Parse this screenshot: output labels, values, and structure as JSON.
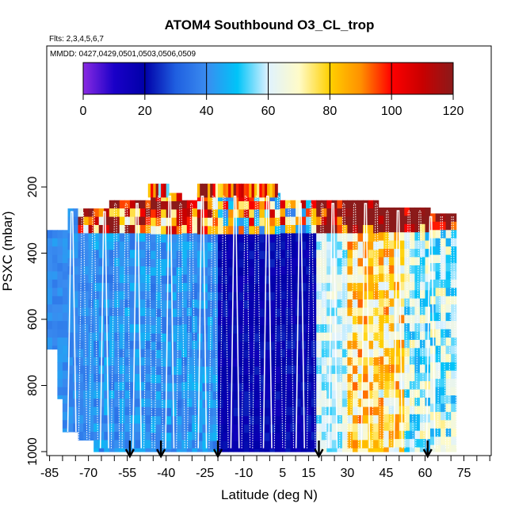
{
  "chart_data": {
    "type": "heatmap",
    "title": "ATOM4 Southbound O3_CL_trop",
    "flights_note": "Flts: 2,3,4,5,6,7",
    "dates_note": "MMDD: 0427,0429,0501,0503,0506,0509",
    "xlabel": "Latitude (deg N)",
    "ylabel": "PSXC (mbar)",
    "xlim": [
      -88,
      90
    ],
    "ylim": [
      1010,
      0
    ],
    "x_ticks": [
      -85,
      -70,
      -55,
      -40,
      -25,
      -10,
      5,
      15,
      30,
      45,
      60,
      75
    ],
    "x_tick_labels": [
      "-85",
      "-70",
      "-55",
      "-40",
      "-25",
      "-10",
      "5",
      "15",
      "30",
      "45",
      "60",
      "75"
    ],
    "x_minor_step": 5,
    "y_ticks": [
      200,
      400,
      600,
      800,
      1000
    ],
    "y_tick_labels": [
      "200",
      "400",
      "600",
      "800",
      "1000"
    ],
    "colorbar": {
      "min": 0,
      "max": 120,
      "ticks": [
        0,
        20,
        40,
        60,
        80,
        100,
        120
      ],
      "tick_labels": [
        "0",
        "20",
        "40",
        "60",
        "80",
        "100",
        "120"
      ],
      "stops": [
        {
          "v": 0,
          "color": "#8a2be2"
        },
        {
          "v": 10,
          "color": "#1a00c8"
        },
        {
          "v": 20,
          "color": "#0000a8"
        },
        {
          "v": 30,
          "color": "#1f5fe0"
        },
        {
          "v": 40,
          "color": "#3a8cf0"
        },
        {
          "v": 50,
          "color": "#00c4f8"
        },
        {
          "v": 60,
          "color": "#dff2ff"
        },
        {
          "v": 70,
          "color": "#fffbc8"
        },
        {
          "v": 80,
          "color": "#ffd000"
        },
        {
          "v": 90,
          "color": "#ff9000"
        },
        {
          "v": 100,
          "color": "#ff0000"
        },
        {
          "v": 110,
          "color": "#c80000"
        },
        {
          "v": 120,
          "color": "#8b1a1a"
        }
      ]
    },
    "o3_field_summary": [
      {
        "lat_range": [
          -85,
          -68
        ],
        "value_ppbv": 38,
        "note": "uniform blue, lower troposphere"
      },
      {
        "lat_range": [
          -68,
          -20
        ],
        "value_ppbv": 40,
        "note": "blue with thin high values near 300 mbar"
      },
      {
        "lat_range": [
          -20,
          18
        ],
        "value_ppbv": 18,
        "note": "tropical minimum (dark blue)"
      },
      {
        "lat_range": [
          18,
          30
        ],
        "value_ppbv": 55,
        "note": "pale blue/white"
      },
      {
        "lat_range": [
          30,
          52
        ],
        "value_ppbv": 70,
        "note": "yellow/orange mid troposphere"
      },
      {
        "lat_range": [
          52,
          72
        ],
        "value_ppbv": 50,
        "note": "light blue, yellow patches"
      },
      {
        "lat_range": [
          -28,
          5
        ],
        "pressure_range": [
          190,
          230
        ],
        "value_ppbv": 100,
        "note": "red/orange upper level band"
      }
    ],
    "sounding_latitudes": [
      -54,
      -42,
      -20,
      19,
      61
    ],
    "sounding_markers": "black downward arrows at bottom axis",
    "flight_track": "white dotted profiles"
  }
}
